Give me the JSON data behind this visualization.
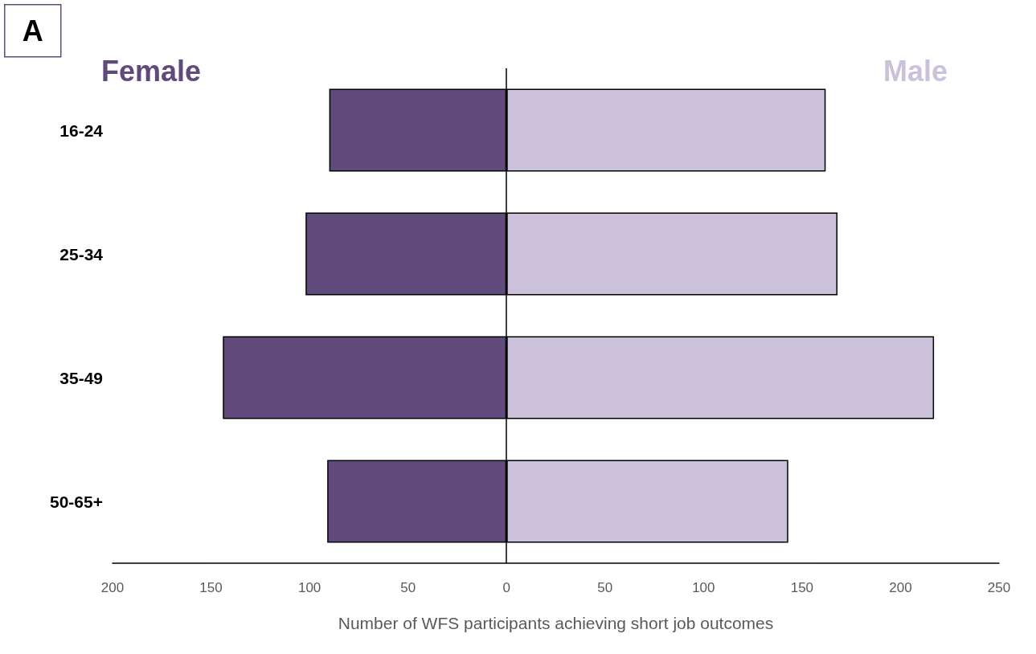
{
  "chart_data": {
    "type": "bar",
    "orientation": "horizontal",
    "stacked": true,
    "xlabel": "Number of WFS participants achieving short job outcomes",
    "categories": [
      "16-24",
      "25-34",
      "35-49",
      "50-65+"
    ],
    "series": [
      {
        "name": "Female",
        "color": "#604a7b",
        "values": [
          -90,
          -102,
          -144,
          -91
        ]
      },
      {
        "name": "Male",
        "color": "#ccc1da",
        "values": [
          162,
          168,
          217,
          143
        ]
      }
    ],
    "xlim": [
      -200,
      250
    ],
    "xticks": [
      {
        "value": -200,
        "label": "200"
      },
      {
        "value": -150,
        "label": "150"
      },
      {
        "value": -100,
        "label": "100"
      },
      {
        "value": -50,
        "label": "50"
      },
      0,
      50,
      100,
      150,
      200,
      250
    ],
    "annotations": [
      "A"
    ],
    "ref_lines": [
      {
        "axis": "x",
        "value": 0,
        "color": "#000000"
      }
    ],
    "grid": false,
    "legend": false
  }
}
